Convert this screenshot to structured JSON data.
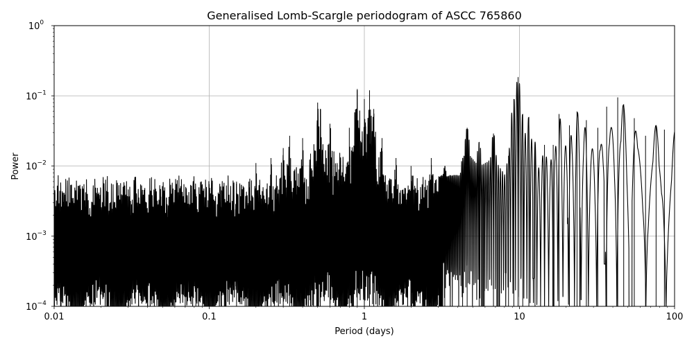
{
  "chart_data": {
    "type": "line",
    "title": "Generalised Lomb-Scargle periodogram of ASCC 765860",
    "xlabel": "Period (days)",
    "ylabel": "Power",
    "xscale": "log",
    "yscale": "log",
    "xlim": [
      0.01,
      100
    ],
    "ylim": [
      0.0001,
      1
    ],
    "grid": true,
    "line_color": "#000000",
    "x_ticks": [
      {
        "value": 0.01,
        "label": "0.01"
      },
      {
        "value": 0.1,
        "label": "0.1"
      },
      {
        "value": 1,
        "label": "1"
      },
      {
        "value": 10,
        "label": "10"
      },
      {
        "value": 100,
        "label": "100"
      }
    ],
    "y_ticks": [
      {
        "value": 0.0001,
        "base": "10",
        "exp": "−4"
      },
      {
        "value": 0.001,
        "base": "10",
        "exp": "−3"
      },
      {
        "value": 0.01,
        "base": "10",
        "exp": "−2"
      },
      {
        "value": 0.1,
        "base": "10",
        "exp": "−1"
      },
      {
        "value": 1,
        "base": "10",
        "exp": "0"
      }
    ],
    "series": [
      {
        "peaks": [
          [
            0.011,
            0.0007
          ],
          [
            0.013,
            0.0009
          ],
          [
            0.015,
            0.0011
          ],
          [
            0.018,
            0.0012
          ],
          [
            0.022,
            0.0016
          ],
          [
            0.026,
            0.0018
          ],
          [
            0.03,
            0.0022
          ],
          [
            0.035,
            0.002
          ],
          [
            0.04,
            0.002
          ],
          [
            0.05,
            0.0022
          ],
          [
            0.06,
            0.0025
          ],
          [
            0.07,
            0.003
          ],
          [
            0.082,
            0.004
          ],
          [
            0.1,
            0.0055
          ],
          [
            0.12,
            0.0045
          ],
          [
            0.15,
            0.006
          ],
          [
            0.18,
            0.006
          ],
          [
            0.2,
            0.011
          ],
          [
            0.25,
            0.013
          ],
          [
            0.3,
            0.018
          ],
          [
            0.33,
            0.027
          ],
          [
            0.4,
            0.025
          ],
          [
            0.45,
            0.015
          ],
          [
            0.5,
            0.08
          ],
          [
            0.52,
            0.065
          ],
          [
            0.6,
            0.04
          ],
          [
            0.8,
            0.035
          ],
          [
            0.9,
            0.125
          ],
          [
            1.0,
            0.09
          ],
          [
            1.08,
            0.12
          ],
          [
            1.15,
            0.065
          ],
          [
            1.3,
            0.025
          ],
          [
            1.6,
            0.013
          ],
          [
            2.0,
            0.01
          ],
          [
            2.7,
            0.013
          ],
          [
            3.3,
            0.01
          ],
          [
            4.3,
            0.013
          ],
          [
            4.6,
            0.035
          ],
          [
            5.5,
            0.022
          ],
          [
            6.8,
            0.029
          ],
          [
            8.5,
            0.014
          ],
          [
            9.2,
            0.09
          ],
          [
            9.8,
            0.185
          ],
          [
            10.5,
            0.055
          ],
          [
            11.5,
            0.05
          ],
          [
            12.6,
            0.022
          ],
          [
            14.5,
            0.02
          ],
          [
            16.5,
            0.02
          ],
          [
            18.0,
            0.055
          ],
          [
            21.0,
            0.038
          ],
          [
            23.5,
            0.06
          ],
          [
            27.0,
            0.045
          ],
          [
            32.0,
            0.035
          ],
          [
            36.5,
            0.07
          ],
          [
            43.0,
            0.095
          ],
          [
            47.0,
            0.076
          ],
          [
            55.0,
            0.048
          ],
          [
            65.0,
            0.027
          ],
          [
            76.0,
            0.038
          ],
          [
            86.0,
            0.033
          ],
          [
            100.0,
            0.036
          ]
        ],
        "troughs": [
          [
            0.5,
            0.0001
          ],
          [
            0.75,
            0.0001
          ],
          [
            1.4,
            0.0001
          ],
          [
            2.1,
            0.0001
          ],
          [
            3.1,
            0.0001
          ],
          [
            5.8,
            0.0001
          ],
          [
            7.3,
            0.0001
          ],
          [
            8.2,
            0.0003
          ],
          [
            12.2,
            0.00025
          ],
          [
            16.8,
            0.0001
          ],
          [
            20.0,
            0.0015
          ],
          [
            24.0,
            0.0001
          ],
          [
            31.5,
            0.0045
          ],
          [
            35.0,
            0.0004
          ],
          [
            39.0,
            0.0003
          ],
          [
            45.0,
            0.0004
          ],
          [
            52.0,
            0.0001
          ],
          [
            60.0,
            0.005
          ],
          [
            68.0,
            0.0065
          ],
          [
            80.0,
            0.016
          ],
          [
            92.0,
            0.011
          ]
        ]
      }
    ]
  }
}
